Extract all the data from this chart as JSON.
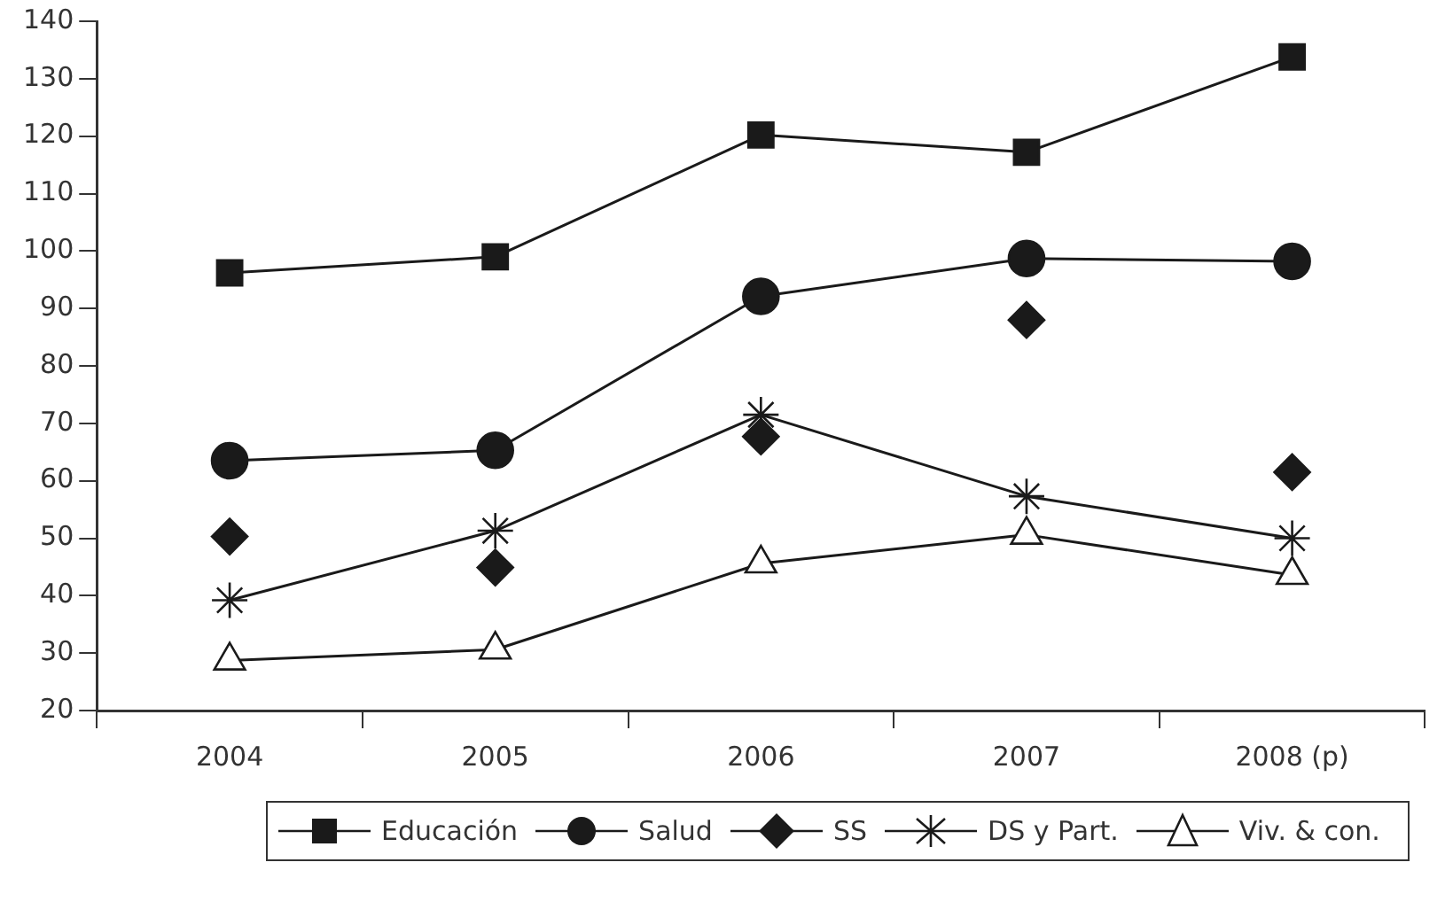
{
  "chart_data": {
    "type": "line",
    "categories": [
      "2004",
      "2005",
      "2006",
      "2007",
      "2008 (p)"
    ],
    "series": [
      {
        "name": "Educación",
        "color": "#1a1a1a",
        "marker": "square",
        "values": [
          96.2,
          99,
          120.2,
          117.2,
          133.8
        ]
      },
      {
        "name": "Salud",
        "color": "#1a1a1a",
        "marker": "circle",
        "values": [
          63.5,
          65.3,
          92.1,
          98.7,
          98.2
        ]
      },
      {
        "name": "SS",
        "type": "scatter",
        "color": "#1a1a1a",
        "marker": "diamond",
        "values": [
          50.3,
          44.9,
          67.7,
          88,
          61.5
        ]
      },
      {
        "name": "DS y Part.",
        "color": "#1a1a1a",
        "marker": "cross",
        "values": [
          39.2,
          51.3,
          71.5,
          57.3,
          50
        ]
      },
      {
        "name": "Viv. & con.",
        "color": "#1a1a1a",
        "marker": "triangle",
        "values": [
          28.7,
          30.6,
          45.6,
          50.6,
          43.6
        ]
      }
    ],
    "ylim": [
      20,
      140
    ],
    "yticks": [
      20,
      30,
      40,
      50,
      60,
      70,
      80,
      90,
      100,
      110,
      120,
      130,
      140
    ],
    "grid": false,
    "legend": "bottom",
    "line_style": "solid"
  }
}
